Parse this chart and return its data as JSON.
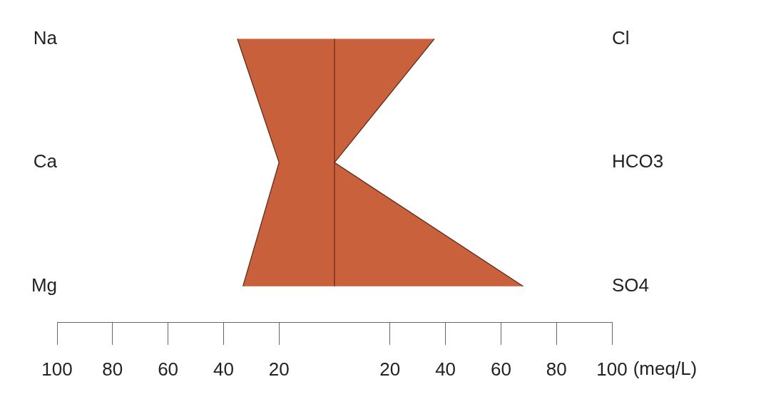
{
  "chart_data": {
    "type": "area",
    "orientation": "horizontal",
    "categories": [
      "Na",
      "Ca",
      "Mg"
    ],
    "y2_categories": [
      "Cl",
      "HCO3",
      "SO4"
    ],
    "series": [
      {
        "color": "#c8613b",
        "values": [
          -35,
          -20,
          -33
        ]
      },
      {
        "color": "#c9623c",
        "values": [
          36,
          0,
          68
        ]
      }
    ],
    "xlabel": "(meq/L)",
    "xlim": [
      -100,
      100
    ],
    "xticks": [
      {
        "value": -100,
        "label": "100"
      },
      {
        "value": -80,
        "label": "80"
      },
      {
        "value": -60,
        "label": "60"
      },
      {
        "value": -40,
        "label": "40"
      },
      {
        "value": -20,
        "label": "20"
      },
      20,
      40,
      60,
      80,
      100
    ],
    "ref_lines": [
      {
        "axis": "x",
        "value": 0,
        "color": "#6b2a17"
      }
    ],
    "grid": false,
    "legend": false
  }
}
